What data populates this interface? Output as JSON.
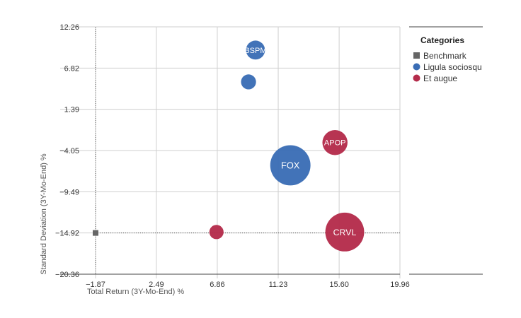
{
  "chart_data": {
    "type": "scatter",
    "xlabel": "Total Return (3Y-Mo-End) %",
    "ylabel": "Standard Deviation (3Y-Mo-End) %",
    "x_ticks": [
      "−1.87",
      "2.49",
      "6.86",
      "11.23",
      "15.60",
      "19.96"
    ],
    "y_ticks": [
      "12.26",
      "6.82",
      "1.39",
      "−4.05",
      "−9.49",
      "−14.92",
      "−20.36"
    ],
    "xlim": [
      -1.87,
      19.96
    ],
    "ylim": [
      -20.36,
      12.26
    ],
    "grid": true,
    "legend": {
      "title": "Categories",
      "position": "right",
      "entries": [
        {
          "name": "Benchmark",
          "shape": "square",
          "color": "#666666"
        },
        {
          "name": "Ligula sociosqu",
          "shape": "circle",
          "color": "#3a6db5"
        },
        {
          "name": "Et augue",
          "shape": "circle",
          "color": "#b42c4b"
        }
      ]
    },
    "benchmark": {
      "x": -1.87,
      "y": -14.92
    },
    "series": [
      {
        "name": "Ligula sociosqu",
        "color": "#3a6db5",
        "points": [
          {
            "label": "BSPM",
            "x": 9.6,
            "y": 9.2,
            "size": 1.6
          },
          {
            "label": "",
            "x": 9.1,
            "y": 5.0,
            "size": 1.0
          },
          {
            "label": "FOX",
            "x": 12.1,
            "y": -6.0,
            "size": 7.2
          }
        ]
      },
      {
        "name": "Et augue",
        "color": "#b42c4b",
        "points": [
          {
            "label": "APOP",
            "x": 15.3,
            "y": -3.0,
            "size": 2.8
          },
          {
            "label": "CRVL",
            "x": 16.0,
            "y": -14.8,
            "size": 6.7
          },
          {
            "label": "",
            "x": 6.8,
            "y": -14.8,
            "size": 0.9
          }
        ]
      }
    ]
  }
}
